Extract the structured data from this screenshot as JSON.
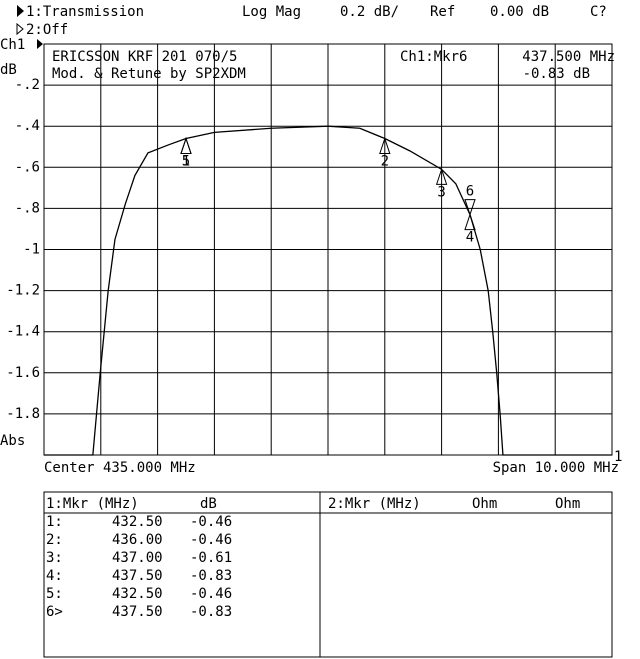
{
  "header": {
    "channel1": "1:Transmission",
    "format": "Log Mag",
    "scale": "0.2 dB/",
    "ref_label": "Ref",
    "ref_value": "0.00 dB",
    "cal": "C?",
    "channel2": "2:Off"
  },
  "chart_data": {
    "type": "line",
    "channel": "Ch1",
    "y_unit": "dB",
    "bottom_label": "Abs",
    "title": "ERICSSON KRF 201 070/5",
    "subtitle": "Mod. & Retune by SP2XDM",
    "active_marker": "Ch1:Mkr6",
    "active_marker_x": "437.500 MHz",
    "active_marker_y": "-0.83 dB",
    "center": "Center 435.000 MHz",
    "span": "Span 10.000 MHz",
    "corner_label": "1",
    "xlim": [
      430,
      440
    ],
    "xticks": [
      430,
      431,
      432,
      433,
      434,
      435,
      436,
      437,
      438,
      439,
      440
    ],
    "ylim": [
      -2,
      0
    ],
    "yticks": [
      {
        "value": -0.2,
        "label": "-.2"
      },
      {
        "value": -0.4,
        "label": "-.4"
      },
      {
        "value": -0.6,
        "label": "-.6"
      },
      {
        "value": -0.8,
        "label": "-.8"
      },
      -1,
      -1.2,
      -1.4,
      -1.6,
      -1.8
    ],
    "grid": true,
    "x": [
      430,
      430.86,
      430.99,
      431.13,
      431.25,
      431.43,
      431.6,
      431.83,
      432.2,
      432.5,
      433,
      434,
      435,
      435.56,
      436,
      436.44,
      437,
      437.25,
      437.5,
      437.68,
      437.82,
      437.9,
      437.97,
      438.03,
      438.08,
      440
    ],
    "series": [
      {
        "name": "Transmission",
        "color": "#000000",
        "values": [
          -2,
          -2,
          -1.6,
          -1.2,
          -0.95,
          -0.78,
          -0.64,
          -0.53,
          -0.49,
          -0.46,
          -0.43,
          -0.41,
          -0.4,
          -0.41,
          -0.46,
          -0.52,
          -0.61,
          -0.68,
          -0.83,
          -1.0,
          -1.2,
          -1.4,
          -1.6,
          -1.8,
          -2,
          -2
        ]
      }
    ],
    "markers": [
      {
        "label": "1",
        "x": 432.5,
        "y": -0.46
      },
      {
        "label": "2",
        "x": 436,
        "y": -0.46
      },
      {
        "label": "3",
        "x": 437,
        "y": -0.61
      },
      {
        "label": "4",
        "x": 437.5,
        "y": -0.83
      },
      {
        "label": "5",
        "x": 432.5,
        "y": -0.46
      },
      {
        "label": "6",
        "x": 437.5,
        "y": -0.83
      }
    ]
  },
  "table": {
    "left_header": [
      "1:Mkr (MHz)",
      "dB"
    ],
    "right_header": [
      "2:Mkr (MHz)",
      "Ohm",
      "Ohm"
    ],
    "rows": [
      [
        "1:",
        "432.50",
        "-0.46"
      ],
      [
        "2:",
        "436.00",
        "-0.46"
      ],
      [
        "3:",
        "437.00",
        "-0.61"
      ],
      [
        "4:",
        "437.50",
        "-0.83"
      ],
      [
        "5:",
        "432.50",
        "-0.46"
      ],
      [
        "6>",
        "437.50",
        "-0.83"
      ]
    ]
  }
}
